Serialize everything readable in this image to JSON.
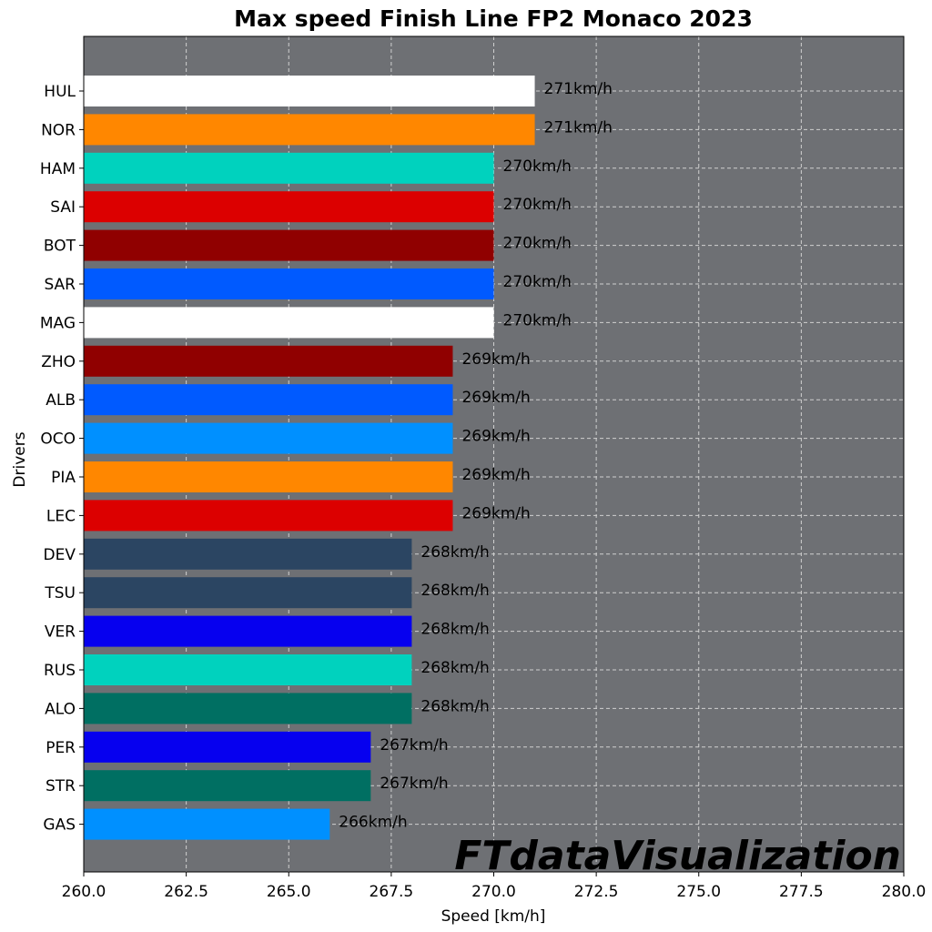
{
  "chart_data": {
    "type": "bar",
    "orientation": "horizontal",
    "title": "Max speed Finish Line FP2 Monaco 2023",
    "xlabel": "Speed [km/h]",
    "ylabel": "Drivers",
    "xlim": [
      260,
      280
    ],
    "xticks": [
      "260.0",
      "262.5",
      "265.0",
      "267.5",
      "270.0",
      "272.5",
      "275.0",
      "277.5",
      "280.0"
    ],
    "grid": true,
    "background_color": "#6e7074",
    "value_suffix": "km/h",
    "watermark": "FTdataVisualization",
    "bars": [
      {
        "driver": "HUL",
        "value": 271,
        "label": "271km/h",
        "color": "#ffffff"
      },
      {
        "driver": "NOR",
        "value": 271,
        "label": "271km/h",
        "color": "#ff8700"
      },
      {
        "driver": "HAM",
        "value": 270,
        "label": "270km/h",
        "color": "#00d2be"
      },
      {
        "driver": "SAI",
        "value": 270,
        "label": "270km/h",
        "color": "#dc0000"
      },
      {
        "driver": "BOT",
        "value": 270,
        "label": "270km/h",
        "color": "#900000"
      },
      {
        "driver": "SAR",
        "value": 270,
        "label": "270km/h",
        "color": "#005aff"
      },
      {
        "driver": "MAG",
        "value": 270,
        "label": "270km/h",
        "color": "#ffffff"
      },
      {
        "driver": "ZHO",
        "value": 269,
        "label": "269km/h",
        "color": "#900000"
      },
      {
        "driver": "ALB",
        "value": 269,
        "label": "269km/h",
        "color": "#005aff"
      },
      {
        "driver": "OCO",
        "value": 269,
        "label": "269km/h",
        "color": "#0090ff"
      },
      {
        "driver": "PIA",
        "value": 269,
        "label": "269km/h",
        "color": "#ff8700"
      },
      {
        "driver": "LEC",
        "value": 269,
        "label": "269km/h",
        "color": "#dc0000"
      },
      {
        "driver": "DEV",
        "value": 268,
        "label": "268km/h",
        "color": "#2b4562"
      },
      {
        "driver": "TSU",
        "value": 268,
        "label": "268km/h",
        "color": "#2b4562"
      },
      {
        "driver": "VER",
        "value": 268,
        "label": "268km/h",
        "color": "#0600ef"
      },
      {
        "driver": "RUS",
        "value": 268,
        "label": "268km/h",
        "color": "#00d2be"
      },
      {
        "driver": "ALO",
        "value": 268,
        "label": "268km/h",
        "color": "#006f62"
      },
      {
        "driver": "PER",
        "value": 267,
        "label": "267km/h",
        "color": "#0600ef"
      },
      {
        "driver": "STR",
        "value": 267,
        "label": "267km/h",
        "color": "#006f62"
      },
      {
        "driver": "GAS",
        "value": 266,
        "label": "266km/h",
        "color": "#0090ff"
      }
    ]
  }
}
